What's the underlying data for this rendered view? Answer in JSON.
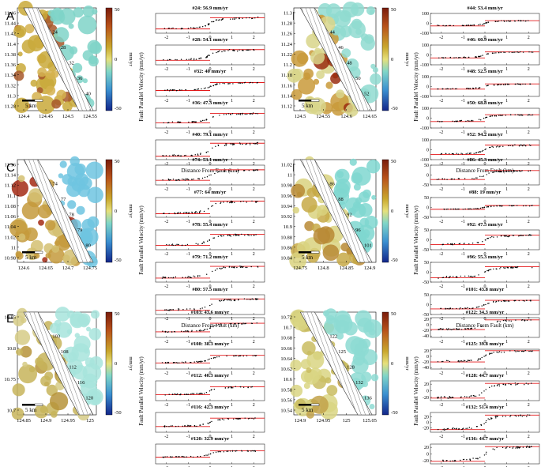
{
  "figure": {
    "panels": [
      {
        "label": "A",
        "map": {
          "x_ticks": [
            "124.4",
            "124.45",
            "124.5",
            "124.55"
          ],
          "y_ticks": [
            "11.46",
            "11.44",
            "11.42",
            "11.4",
            "11.38",
            "11.36",
            "11.34",
            "11.32",
            "11.3",
            "11.28"
          ],
          "profile_ids": [
            "24",
            "28",
            "32",
            "36",
            "40"
          ],
          "scale_label": "5 km",
          "colorbar_ticks": [
            "50",
            "0",
            "-50"
          ],
          "colorbar_unit": "mm/yr"
        },
        "profiles_x_ticks": [
          "-2",
          "-1",
          "0",
          "1",
          "2"
        ]
      },
      {
        "label": "B",
        "map": {
          "x_ticks": [
            "124.5",
            "124.55",
            "124.6",
            "124.65"
          ],
          "y_ticks": [
            "11.3",
            "11.28",
            "11.26",
            "11.24",
            "11.22",
            "11.2",
            "11.18",
            "11.16",
            "11.14",
            "11.12"
          ],
          "profile_ids": [
            "44",
            "46",
            "48",
            "50",
            "52"
          ],
          "scale_label": "5 km",
          "colorbar_ticks": [
            "50",
            "0",
            "-50"
          ],
          "colorbar_unit": "mm/yr"
        },
        "profiles_x_ticks": [
          "-2",
          "-1",
          "0",
          "1",
          "2"
        ]
      },
      {
        "label": "C",
        "map": {
          "x_ticks": [
            "124.6",
            "124.65",
            "124.7",
            "124.75"
          ],
          "y_ticks": [
            "11.16",
            "11.14",
            "11.12",
            "11.1",
            "11.08",
            "11.06",
            "11.04",
            "11.02",
            "11",
            "10.98"
          ],
          "profile_ids": [
            "74",
            "77",
            "78",
            "79",
            "80"
          ],
          "scale_label": "5 km",
          "colorbar_ticks": [
            "50",
            "0",
            "-50"
          ],
          "colorbar_unit": "mm/yr"
        },
        "profiles_x_ticks": [
          "-2",
          "-1",
          "0",
          "1",
          "2"
        ]
      },
      {
        "label": "D",
        "map": {
          "x_ticks": [
            "124.75",
            "124.8",
            "124.85",
            "124.9"
          ],
          "y_ticks": [
            "11.02",
            "11",
            "10.98",
            "10.96",
            "10.94",
            "10.92",
            "10.9",
            "10.88",
            "10.86",
            "10.84"
          ],
          "profile_ids": [
            "86",
            "88",
            "92",
            "96",
            "101"
          ],
          "scale_label": "5 km",
          "colorbar_ticks": [
            "50",
            "0",
            "-50"
          ],
          "colorbar_unit": "mm/yr"
        },
        "profiles_x_ticks": [
          "-2",
          "-1",
          "0",
          "1",
          "2"
        ]
      },
      {
        "label": "E",
        "map": {
          "x_ticks": [
            "124.85",
            "124.9",
            "124.95",
            "125"
          ],
          "y_ticks": [
            "10.85",
            "10.8",
            "10.75",
            "10.7"
          ],
          "profile_ids": [
            "103",
            "108",
            "112",
            "116",
            "120"
          ],
          "scale_label": "5 km",
          "colorbar_ticks": [
            "50",
            "0",
            "-50"
          ],
          "colorbar_unit": "mm/yr"
        },
        "profiles_x_ticks": [
          "-2",
          "-1",
          "0",
          "1",
          "2"
        ]
      },
      {
        "label": "F",
        "map": {
          "x_ticks": [
            "124.9",
            "124.95",
            "125",
            "125.05"
          ],
          "y_ticks": [
            "10.72",
            "10.7",
            "10.68",
            "10.66",
            "10.64",
            "10.62",
            "10.6",
            "10.58",
            "10.56",
            "10.54"
          ],
          "profile_ids": [
            "122",
            "125",
            "128",
            "132",
            "136"
          ],
          "scale_label": "5 km",
          "colorbar_ticks": [
            "50",
            "0",
            "-50"
          ],
          "colorbar_unit": "mm/yr"
        },
        "profiles_x_ticks": [
          "-2",
          "-1",
          "0",
          "1",
          "2"
        ]
      }
    ],
    "profile_xlabel": "Distance From Fault (km)",
    "profile_ylabel": "Fault Parallel Velocity (mm/yr)",
    "colors": {
      "fit_line": "#e41a1c",
      "data_points": "#000000",
      "hatch": "#555555"
    }
  },
  "chart_data": [
    {
      "type": "scatter",
      "panel": "A",
      "xlabel": "Distance From Fault (km)",
      "ylabel": "Fault Parallel Velocity (mm/yr)",
      "xlim": [
        -2.5,
        2.5
      ],
      "profiles": [
        {
          "title": "#24: 56.9 mm/yr",
          "rate": 56.9,
          "y_ticks": [],
          "ylim": [
            -50,
            50
          ]
        },
        {
          "title": "#28: 54.1 mm/yr",
          "rate": 54.1,
          "y_ticks": [],
          "ylim": [
            -50,
            50
          ]
        },
        {
          "title": "#32: 40 mm/yr",
          "rate": 40,
          "y_ticks": [],
          "ylim": [
            -50,
            50
          ]
        },
        {
          "title": "#36: 47.3 mm/yr",
          "rate": 47.3,
          "y_ticks": [],
          "ylim": [
            -50,
            50
          ]
        },
        {
          "title": "#40: 79.1 mm/yr",
          "rate": 79.1,
          "y_ticks": [],
          "ylim": [
            -60,
            60
          ]
        }
      ]
    },
    {
      "type": "scatter",
      "panel": "B",
      "xlabel": "Distance From Fault (km)",
      "ylabel": "Fault Parallel Velocity (mm/yr)",
      "xlim": [
        -2.5,
        2.5
      ],
      "profiles": [
        {
          "title": "#44: 53.4 mm/yr",
          "rate": 53.4,
          "y_ticks": [
            "100",
            "0",
            "-100"
          ],
          "ylim": [
            -100,
            100
          ]
        },
        {
          "title": "#46: 60.9 mm/yr",
          "rate": 60.9,
          "y_ticks": [
            "100",
            "0",
            "-100"
          ],
          "ylim": [
            -100,
            100
          ]
        },
        {
          "title": "#48: 52.5 mm/yr",
          "rate": 52.5,
          "y_ticks": [
            "100",
            "0",
            "-100"
          ],
          "ylim": [
            -100,
            100
          ]
        },
        {
          "title": "#50: 68.8 mm/yr",
          "rate": 68.8,
          "y_ticks": [
            "100",
            "0",
            "-100"
          ],
          "ylim": [
            -100,
            100
          ]
        },
        {
          "title": "#52: 94.2 mm/yr",
          "rate": 94.2,
          "y_ticks": [
            "100",
            "0",
            "-100"
          ],
          "ylim": [
            -100,
            100
          ]
        }
      ]
    },
    {
      "type": "scatter",
      "panel": "C",
      "xlabel": "Distance From Fault (km)",
      "ylabel": "Fault Parallel Velocity (mm/yr)",
      "xlim": [
        -2.5,
        2.5
      ],
      "profiles": [
        {
          "title": "#74: 53.1 mm/yr",
          "rate": 53.1,
          "y_ticks": [],
          "ylim": [
            -50,
            50
          ]
        },
        {
          "title": "#77: 64 mm/yr",
          "rate": 64,
          "y_ticks": [],
          "ylim": [
            -50,
            50
          ]
        },
        {
          "title": "#78: 55.4 mm/yr",
          "rate": 55.4,
          "y_ticks": [],
          "ylim": [
            -50,
            50
          ]
        },
        {
          "title": "#79: 71.2 mm/yr",
          "rate": 71.2,
          "y_ticks": [],
          "ylim": [
            -60,
            60
          ]
        },
        {
          "title": "#80: 57.5 mm/yr",
          "rate": 57.5,
          "y_ticks": [],
          "ylim": [
            -50,
            50
          ]
        }
      ]
    },
    {
      "type": "scatter",
      "panel": "D",
      "xlabel": "Distance From Fault (km)",
      "ylabel": "Fault Parallel Velocity (mm/yr)",
      "xlim": [
        -2.5,
        2.5
      ],
      "profiles": [
        {
          "title": "#86: 45.3 mm/yr",
          "rate": 45.3,
          "y_ticks": [
            "50",
            "0",
            "-50"
          ],
          "ylim": [
            -50,
            50
          ]
        },
        {
          "title": "#88: 19 mm/yr",
          "rate": 19,
          "y_ticks": [
            "50",
            "0",
            "-50"
          ],
          "ylim": [
            -50,
            50
          ]
        },
        {
          "title": "#92: 47.5 mm/yr",
          "rate": 47.5,
          "y_ticks": [
            "50",
            "0",
            "-50"
          ],
          "ylim": [
            -50,
            50
          ]
        },
        {
          "title": "#96: 55.3 mm/yr",
          "rate": 55.3,
          "y_ticks": [
            "50",
            "0",
            "-50"
          ],
          "ylim": [
            -50,
            50
          ]
        },
        {
          "title": "#101: 43.8 mm/yr",
          "rate": 43.8,
          "y_ticks": [
            "50",
            "0",
            "-50"
          ],
          "ylim": [
            -50,
            50
          ]
        }
      ]
    },
    {
      "type": "scatter",
      "panel": "E",
      "xlabel": "Distance From Fault (km)",
      "ylabel": "Fault Parallel Velocity (mm/yr)",
      "xlim": [
        -2.5,
        2.5
      ],
      "profiles": [
        {
          "title": "#103: 43.6 mm/yr",
          "rate": 43.6,
          "y_ticks": [],
          "ylim": [
            -50,
            50
          ]
        },
        {
          "title": "#108: 38.3 mm/yr",
          "rate": 38.3,
          "y_ticks": [],
          "ylim": [
            -50,
            50
          ]
        },
        {
          "title": "#112: 40.3 mm/yr",
          "rate": 40.3,
          "y_ticks": [],
          "ylim": [
            -50,
            50
          ]
        },
        {
          "title": "#116: 42.3 mm/yr",
          "rate": 42.3,
          "y_ticks": [],
          "ylim": [
            -50,
            50
          ]
        },
        {
          "title": "#120: 32.9 mm/yr",
          "rate": 32.9,
          "y_ticks": [],
          "ylim": [
            -50,
            50
          ]
        }
      ]
    },
    {
      "type": "scatter",
      "panel": "F",
      "xlabel": "Distance From Fault (km)",
      "ylabel": "Fault Parallel Velocity (mm/yr)",
      "xlim": [
        -2.5,
        2.5
      ],
      "profiles": [
        {
          "title": "#122: 34.3 mm/yr",
          "rate": 34.3,
          "y_ticks": [
            "20",
            "0",
            "-20",
            "-40"
          ],
          "ylim": [
            -45,
            25
          ]
        },
        {
          "title": "#125: 39.8 mm/yr",
          "rate": 39.8,
          "y_ticks": [
            "20",
            "0",
            "-20",
            "-40"
          ],
          "ylim": [
            -45,
            25
          ]
        },
        {
          "title": "#128: 44.7 mm/yr",
          "rate": 44.7,
          "y_ticks": [
            "20",
            "0",
            "-20"
          ],
          "ylim": [
            -30,
            30
          ]
        },
        {
          "title": "#132: 51.4 mm/yr",
          "rate": 51.4,
          "y_ticks": [
            "20",
            "0",
            "-20"
          ],
          "ylim": [
            -35,
            35
          ]
        },
        {
          "title": "#136: 44.7 mm/yr",
          "rate": 44.7,
          "y_ticks": [
            "20",
            "0",
            "-20"
          ],
          "ylim": [
            -30,
            30
          ]
        }
      ]
    }
  ]
}
